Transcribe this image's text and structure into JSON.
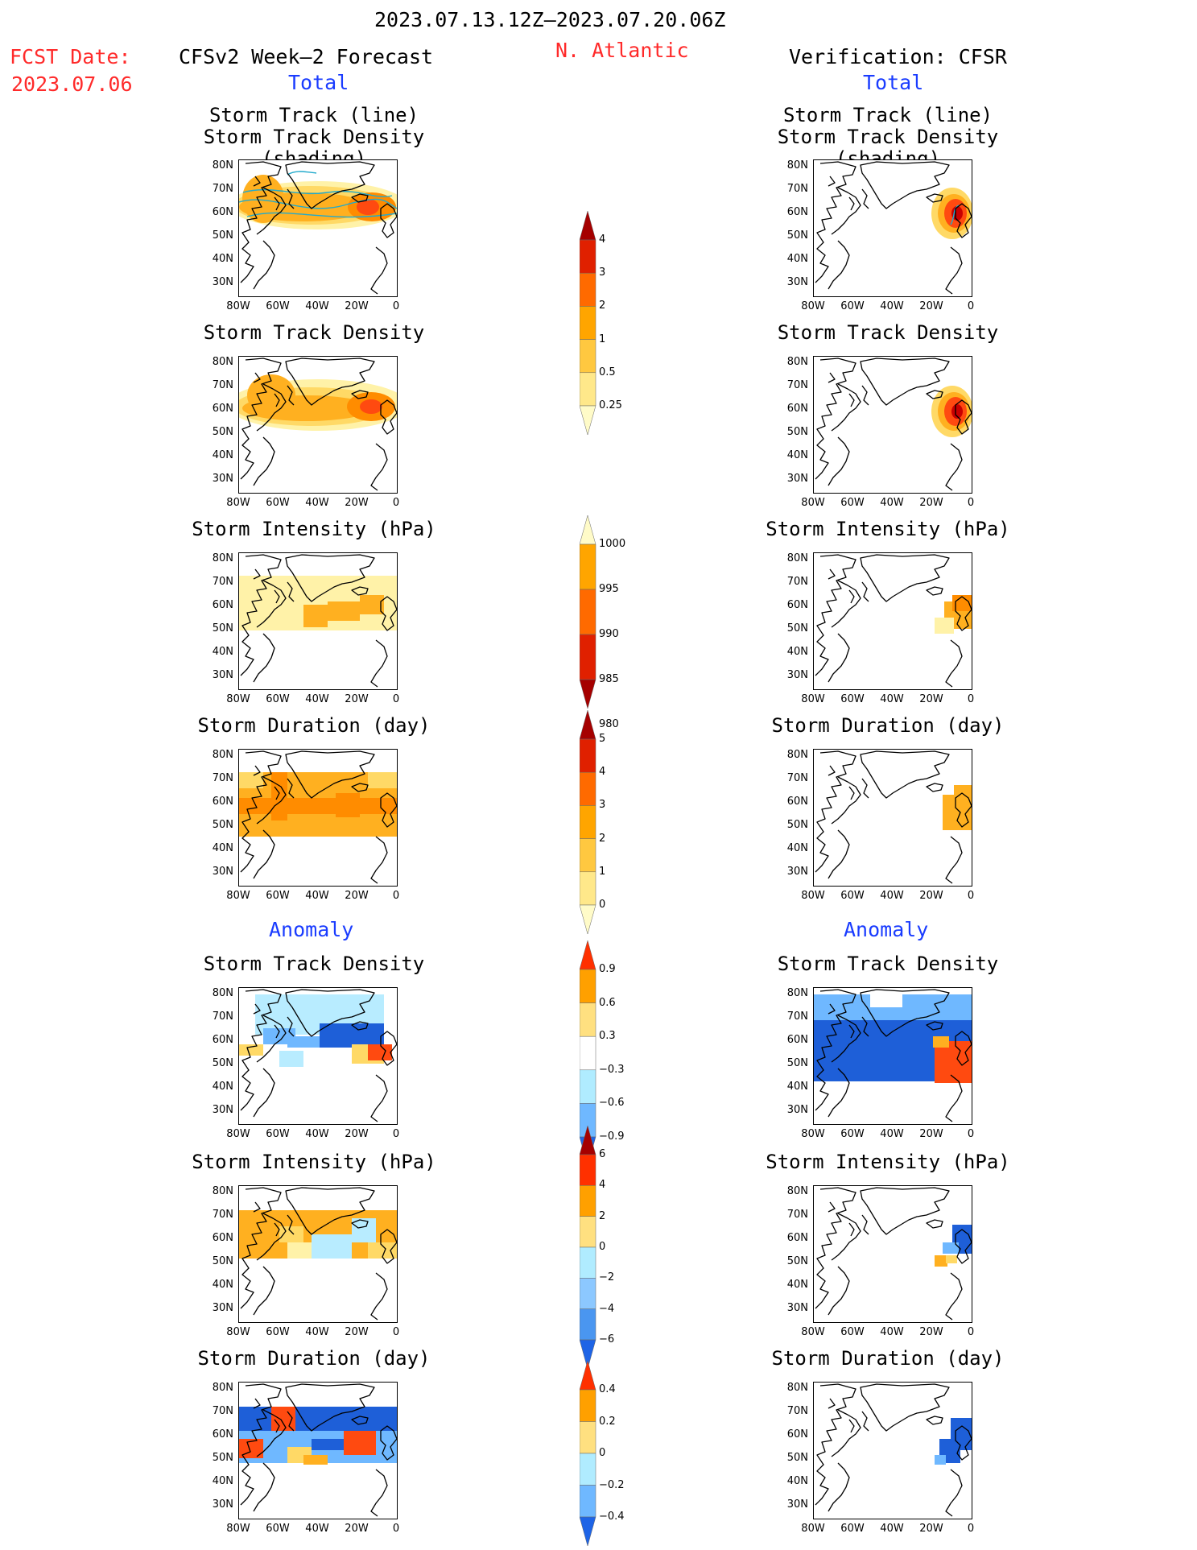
{
  "header": {
    "period": "2023.07.13.12Z–2023.07.20.06Z",
    "fcst_label": "FCST Date:",
    "fcst_date": "2023.07.06",
    "left_title": "CFSv2 Week–2 Forecast",
    "region": "N. Atlantic",
    "right_title": "Verification: CFSR",
    "total_left": "Total",
    "total_right": "Total",
    "anomaly_left": "Anomaly",
    "anomaly_right": "Anomaly"
  },
  "axes": {
    "lat_labels": [
      "80N",
      "70N",
      "60N",
      "50N",
      "40N",
      "30N"
    ],
    "lon_labels": [
      "80W",
      "60W",
      "40W",
      "20W",
      "0"
    ]
  },
  "panels": [
    {
      "title1": "Storm Track (line)",
      "title2": "Storm Track Density (shading)"
    },
    {
      "title1": "Storm Track Density",
      "title2": ""
    },
    {
      "title1": "Storm Intensity (hPa)",
      "title2": ""
    },
    {
      "title1": "Storm Duration (day)",
      "title2": ""
    },
    {
      "title1": "Storm Track Density",
      "title2": ""
    },
    {
      "title1": "Storm Intensity (hPa)",
      "title2": ""
    },
    {
      "title1": "Storm Duration (day)",
      "title2": ""
    }
  ],
  "colorbars": [
    {
      "labels": [
        "4",
        "3",
        "2",
        "1",
        "0.5",
        "0.25"
      ],
      "colors": [
        "#a50000",
        "#e02000",
        "#ff6a00",
        "#ffa500",
        "#ffc840",
        "#ffe88a",
        "#fffbc8"
      ]
    },
    {
      "labels": [
        "1000",
        "995",
        "990",
        "985",
        "980"
      ],
      "colors": [
        "#fffbc8",
        "#ffa500",
        "#ff6a00",
        "#e02000",
        "#a50000"
      ]
    },
    {
      "labels": [
        "5",
        "4",
        "3",
        "2",
        "1",
        "0"
      ],
      "colors": [
        "#a50000",
        "#e02000",
        "#ff6a00",
        "#ffa500",
        "#ffc840",
        "#ffe88a",
        "#fffbc8"
      ]
    },
    {
      "labels": [
        "0.9",
        "0.6",
        "0.3",
        "−0.3",
        "−0.6",
        "−0.9"
      ],
      "colors": [
        "#ff3000",
        "#ffa000",
        "#ffe080",
        "#ffffff",
        "#b0ecff",
        "#6fb8ff",
        "#1e64e6"
      ]
    },
    {
      "labels": [
        "6",
        "4",
        "2",
        "0",
        "−2",
        "−4",
        "−6"
      ],
      "colors": [
        "#a50000",
        "#ff3000",
        "#ffa000",
        "#ffe080",
        "#b0ecff",
        "#8cc8ff",
        "#4a96f0",
        "#1e64e6"
      ]
    },
    {
      "labels": [
        "0.4",
        "0.2",
        "0",
        "−0.2",
        "−0.4"
      ],
      "colors": [
        "#ff3000",
        "#ffa000",
        "#ffe080",
        "#b0ecff",
        "#6fb8ff",
        "#1e64e6"
      ]
    }
  ],
  "colors": {
    "title_red": "#ff2a2a",
    "title_blue": "#1a3cff",
    "track_line": "#22aacc"
  }
}
